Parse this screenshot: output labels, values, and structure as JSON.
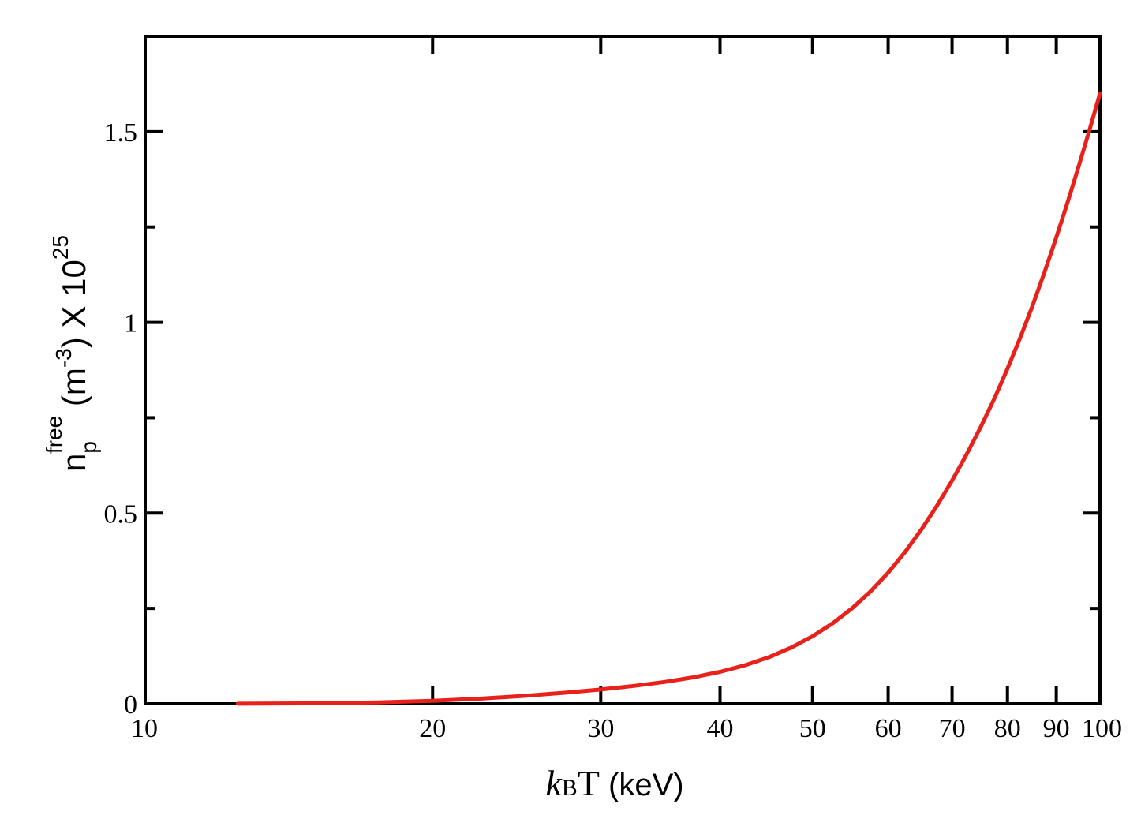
{
  "chart_data": {
    "type": "line",
    "x_scale": "log",
    "xlim": [
      10,
      100
    ],
    "ylim": [
      0,
      1.75
    ],
    "grid": false,
    "legend": "none",
    "x_ticks": [
      "10",
      "20",
      "30",
      "40",
      "50",
      "60",
      "70",
      "80",
      "90",
      "100"
    ],
    "y_ticks": [
      "0",
      "0.5",
      "1",
      "1.5"
    ],
    "xlabel": {
      "k": "k",
      "sub": "B",
      "T": "T",
      "unit": " (keV)"
    },
    "ylabel": {
      "n": "n",
      "sub": "p",
      "sup": "free",
      "unit_open": "  (m",
      "unit_exp": "-3",
      "unit_close": ") X 10",
      "power": "25"
    },
    "series": [
      {
        "color": "#e8221a",
        "x": [
          12.5,
          15,
          17.5,
          20,
          22.5,
          25,
          27.5,
          30,
          32.5,
          35,
          37.5,
          40,
          42.5,
          45,
          47.5,
          50,
          52.5,
          55,
          57.5,
          60,
          62.5,
          65,
          67.5,
          70,
          72.5,
          75,
          77.5,
          80,
          82.5,
          85,
          87.5,
          90,
          92.5,
          95,
          97.5,
          100
        ],
        "y": [
          0.0002,
          0.0012,
          0.0035,
          0.0078,
          0.0136,
          0.0208,
          0.029,
          0.0375,
          0.047,
          0.0574,
          0.0693,
          0.0838,
          0.1012,
          0.1223,
          0.1475,
          0.177,
          0.2112,
          0.2503,
          0.2945,
          0.3438,
          0.398,
          0.4568,
          0.5194,
          0.5853,
          0.6539,
          0.7253,
          0.8,
          0.8781,
          0.9594,
          1.0441,
          1.1319,
          1.2223,
          1.3148,
          1.409,
          1.5043,
          1.6
        ]
      }
    ]
  }
}
